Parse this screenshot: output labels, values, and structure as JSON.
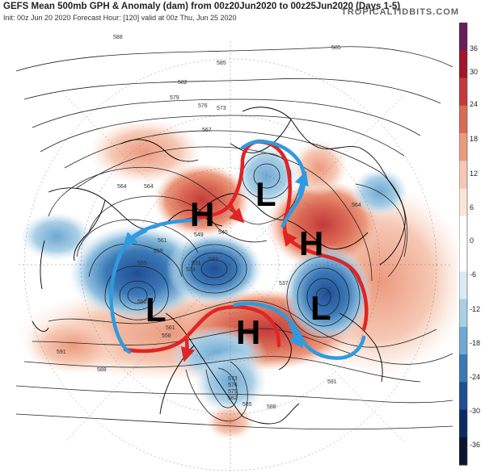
{
  "header": {
    "title": "GEFS Mean 500mb GPH & Anomaly (dam) from 00z20Jun2020 to 00z25Jun2020 (Days 1-5)",
    "subtitle": "Init: 00z Jun 20 2020   Forecast Hour: [120]   valid at 00z Thu, Jun 25 2020",
    "site": "TROPICALTIDBITS.COM"
  },
  "colorbar": {
    "ticks": [
      "36",
      "30",
      "24",
      "18",
      "12",
      "6",
      "0",
      "-6",
      "-12",
      "-18",
      "-24",
      "-30",
      "-36"
    ],
    "top_color": "#6a1b5a",
    "positive_colors": [
      "#a4152b",
      "#c43a3a",
      "#db6a55",
      "#ec9a7e",
      "#f6c8b4",
      "#fbe5d8"
    ],
    "negative_colors": [
      "#dae9f3",
      "#a9cfe6",
      "#6fa8d3",
      "#3a79b8",
      "#1f4e94",
      "#0e2a66"
    ],
    "bottom_color": "#0a1530"
  },
  "annotations": {
    "highs": [
      "H",
      "H",
      "H"
    ],
    "lows": [
      "L",
      "L",
      "L"
    ]
  },
  "contour_labels": [
    "588",
    "585",
    "585",
    "582",
    "579",
    "576",
    "573",
    "567",
    "564",
    "561",
    "558",
    "555",
    "552",
    "549",
    "543",
    "540",
    "534",
    "531",
    "537",
    "564",
    "561",
    "558",
    "591",
    "588",
    "573",
    "576",
    "579",
    "582",
    "585",
    "588",
    "591",
    "564"
  ]
}
